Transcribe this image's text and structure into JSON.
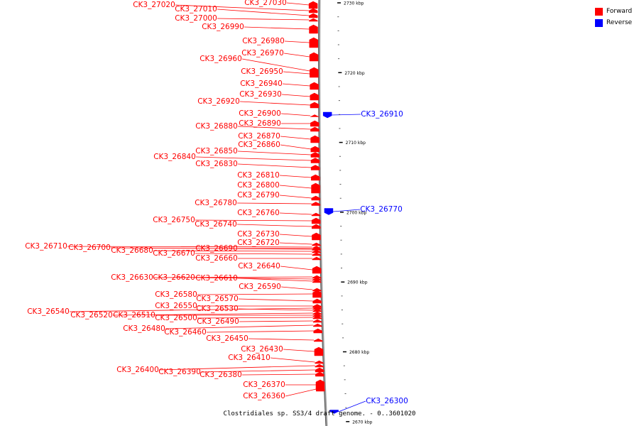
{
  "title": "Clostridiales sp. SS3/4 draft genome. - 0..3601020",
  "legend": {
    "forward": {
      "label": "Forward",
      "color": "#ff0000"
    },
    "reverse": {
      "label": "Reverse",
      "color": "#0000ff"
    }
  },
  "ticks": [
    {
      "label": "2730 kbp",
      "kbp": 2730
    },
    {
      "label": "2720 kbp",
      "kbp": 2720
    },
    {
      "label": "2710 kbp",
      "kbp": 2710
    },
    {
      "label": "2700 kbp",
      "kbp": 2700
    },
    {
      "label": "2690 kbp",
      "kbp": 2690
    },
    {
      "label": "2680 kbp",
      "kbp": 2680
    },
    {
      "label": "2670 kbp",
      "kbp": 2670
    }
  ],
  "genes": [
    {
      "name": "CK3_27030",
      "strand": "forward"
    },
    {
      "name": "CK3_27020",
      "strand": "forward"
    },
    {
      "name": "CK3_27010",
      "strand": "forward"
    },
    {
      "name": "CK3_27000",
      "strand": "forward"
    },
    {
      "name": "CK3_26990",
      "strand": "forward"
    },
    {
      "name": "CK3_26980",
      "strand": "forward"
    },
    {
      "name": "CK3_26970",
      "strand": "forward"
    },
    {
      "name": "CK3_26960",
      "strand": "forward"
    },
    {
      "name": "CK3_26950",
      "strand": "forward"
    },
    {
      "name": "CK3_26940",
      "strand": "forward"
    },
    {
      "name": "CK3_26930",
      "strand": "forward"
    },
    {
      "name": "CK3_26920",
      "strand": "forward"
    },
    {
      "name": "CK3_26910",
      "strand": "reverse"
    },
    {
      "name": "CK3_26900",
      "strand": "forward"
    },
    {
      "name": "CK3_26890",
      "strand": "forward"
    },
    {
      "name": "CK3_26880",
      "strand": "forward"
    },
    {
      "name": "CK3_26870",
      "strand": "forward"
    },
    {
      "name": "CK3_26860",
      "strand": "forward"
    },
    {
      "name": "CK3_26850",
      "strand": "forward"
    },
    {
      "name": "CK3_26840",
      "strand": "forward"
    },
    {
      "name": "CK3_26830",
      "strand": "forward"
    },
    {
      "name": "CK3_26810",
      "strand": "forward"
    },
    {
      "name": "CK3_26800",
      "strand": "forward"
    },
    {
      "name": "CK3_26790",
      "strand": "forward"
    },
    {
      "name": "CK3_26780",
      "strand": "forward"
    },
    {
      "name": "CK3_26770",
      "strand": "reverse"
    },
    {
      "name": "CK3_26760",
      "strand": "forward"
    },
    {
      "name": "CK3_26750",
      "strand": "forward"
    },
    {
      "name": "CK3_26740",
      "strand": "forward"
    },
    {
      "name": "CK3_26730",
      "strand": "forward"
    },
    {
      "name": "CK3_26720",
      "strand": "forward"
    },
    {
      "name": "CK3_26710",
      "strand": "forward"
    },
    {
      "name": "CK3_26700",
      "strand": "forward"
    },
    {
      "name": "CK3_26690",
      "strand": "forward"
    },
    {
      "name": "CK3_26680",
      "strand": "forward"
    },
    {
      "name": "CK3_26670",
      "strand": "forward"
    },
    {
      "name": "CK3_26660",
      "strand": "forward"
    },
    {
      "name": "CK3_26640",
      "strand": "forward"
    },
    {
      "name": "CK3_26630",
      "strand": "forward"
    },
    {
      "name": "CK3_26620",
      "strand": "forward"
    },
    {
      "name": "CK3_26610",
      "strand": "forward"
    },
    {
      "name": "CK3_26590",
      "strand": "forward"
    },
    {
      "name": "CK3_26580",
      "strand": "forward"
    },
    {
      "name": "CK3_26570",
      "strand": "forward"
    },
    {
      "name": "CK3_26550",
      "strand": "forward"
    },
    {
      "name": "CK3_26540",
      "strand": "forward"
    },
    {
      "name": "CK3_26530",
      "strand": "forward"
    },
    {
      "name": "CK3_26520",
      "strand": "forward"
    },
    {
      "name": "CK3_26510",
      "strand": "forward"
    },
    {
      "name": "CK3_26500",
      "strand": "forward"
    },
    {
      "name": "CK3_26490",
      "strand": "forward"
    },
    {
      "name": "CK3_26480",
      "strand": "forward"
    },
    {
      "name": "CK3_26460",
      "strand": "forward"
    },
    {
      "name": "CK3_26450",
      "strand": "forward"
    },
    {
      "name": "CK3_26430",
      "strand": "forward"
    },
    {
      "name": "CK3_26410",
      "strand": "forward"
    },
    {
      "name": "CK3_26400",
      "strand": "forward"
    },
    {
      "name": "CK3_26390",
      "strand": "forward"
    },
    {
      "name": "CK3_26380",
      "strand": "forward"
    },
    {
      "name": "CK3_26370",
      "strand": "forward"
    },
    {
      "name": "CK3_26360",
      "strand": "forward"
    },
    {
      "name": "CK3_26300",
      "strand": "reverse"
    }
  ]
}
